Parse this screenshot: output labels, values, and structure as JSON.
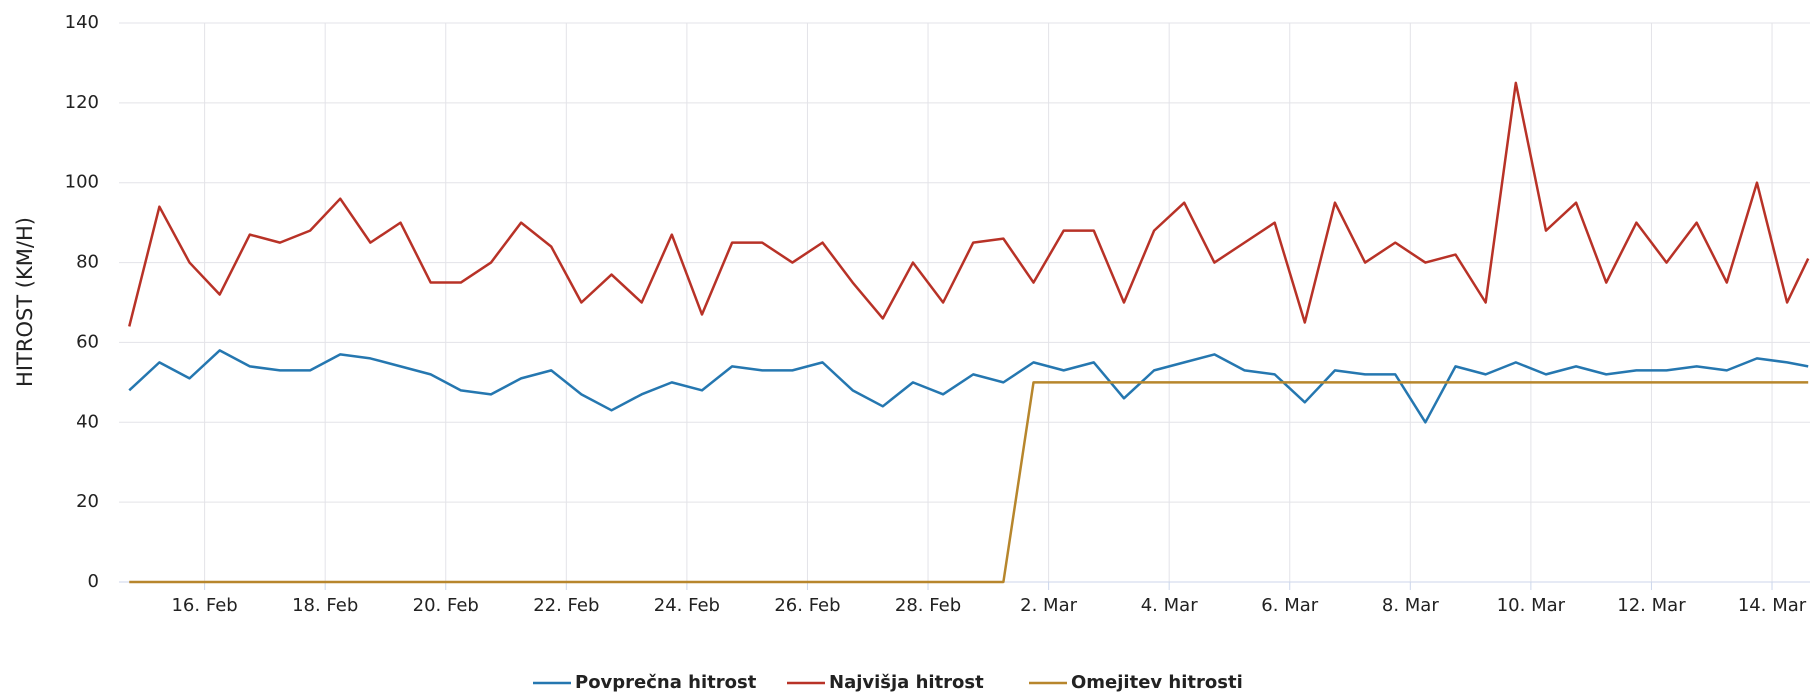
{
  "chart_data": {
    "type": "line",
    "y_label": "HITROST (KM/H)",
    "x": [
      14.75,
      15.25,
      15.75,
      16.25,
      16.75,
      17.25,
      17.75,
      18.25,
      18.75,
      19.25,
      19.75,
      20.25,
      20.75,
      21.25,
      21.75,
      22.25,
      22.75,
      23.25,
      23.75,
      24.25,
      24.75,
      25.25,
      25.75,
      26.25,
      26.75,
      27.25,
      27.75,
      28.25,
      28.75,
      29.25,
      29.75,
      30.25,
      30.75,
      31.25,
      31.75,
      32.25,
      32.75,
      33.25,
      33.75,
      34.25,
      34.75,
      35.25,
      35.75,
      36.25,
      36.75,
      37.25,
      37.75,
      38.25,
      38.75,
      39.25,
      39.75,
      40.25,
      40.75,
      41.25,
      41.75,
      42.25,
      42.6
    ],
    "series": [
      {
        "name": "Povprečna hitrost",
        "color": "#2577b0",
        "values": [
          48,
          55,
          51,
          58,
          54,
          53,
          53,
          57,
          56,
          54,
          52,
          48,
          47,
          51,
          53,
          47,
          43,
          47,
          50,
          48,
          54,
          53,
          53,
          55,
          48,
          44,
          50,
          47,
          52,
          50,
          55,
          53,
          55,
          46,
          53,
          55,
          57,
          53,
          52,
          45,
          53,
          52,
          52,
          40,
          54,
          52,
          55,
          52,
          54,
          52,
          53,
          53,
          54,
          53,
          56,
          55,
          54
        ]
      },
      {
        "name": "Najvišja hitrost",
        "color": "#b83227",
        "values": [
          64,
          94,
          80,
          72,
          87,
          85,
          88,
          96,
          85,
          90,
          75,
          75,
          80,
          90,
          84,
          70,
          77,
          70,
          87,
          67,
          85,
          85,
          80,
          85,
          75,
          66,
          80,
          70,
          85,
          86,
          75,
          88,
          88,
          70,
          88,
          95,
          80,
          85,
          90,
          65,
          95,
          80,
          85,
          80,
          82,
          70,
          125,
          88,
          95,
          75,
          90,
          80,
          90,
          75,
          100,
          70,
          81
        ]
      },
      {
        "name": "Omejitev hitrosti",
        "color": "#b7862c",
        "values": [
          0,
          0,
          0,
          0,
          0,
          0,
          0,
          0,
          0,
          0,
          0,
          0,
          0,
          0,
          0,
          0,
          0,
          0,
          0,
          0,
          0,
          0,
          0,
          0,
          0,
          0,
          0,
          0,
          0,
          0,
          50,
          50,
          50,
          50,
          50,
          50,
          50,
          50,
          50,
          50,
          50,
          50,
          50,
          50,
          50,
          50,
          50,
          50,
          50,
          50,
          50,
          50,
          50,
          50,
          50,
          50,
          50
        ]
      }
    ],
    "xlim": [
      14.58,
      42.63
    ],
    "xticks": [
      {
        "value": 16,
        "label": "16. Feb"
      },
      {
        "value": 18,
        "label": "18. Feb"
      },
      {
        "value": 20,
        "label": "20. Feb"
      },
      {
        "value": 22,
        "label": "22. Feb"
      },
      {
        "value": 24,
        "label": "24. Feb"
      },
      {
        "value": 26,
        "label": "26. Feb"
      },
      {
        "value": 28,
        "label": "28. Feb"
      },
      {
        "value": 30,
        "label": "2. Mar"
      },
      {
        "value": 32,
        "label": "4. Mar"
      },
      {
        "value": 34,
        "label": "6. Mar"
      },
      {
        "value": 36,
        "label": "8. Mar"
      },
      {
        "value": 38,
        "label": "10. Mar"
      },
      {
        "value": 40,
        "label": "12. Mar"
      },
      {
        "value": 42,
        "label": "14. Mar"
      }
    ],
    "ylim": [
      0,
      140
    ],
    "yticks": [
      0,
      20,
      40,
      60,
      80,
      100,
      120,
      140
    ],
    "grid": true,
    "legend": "bottom"
  }
}
